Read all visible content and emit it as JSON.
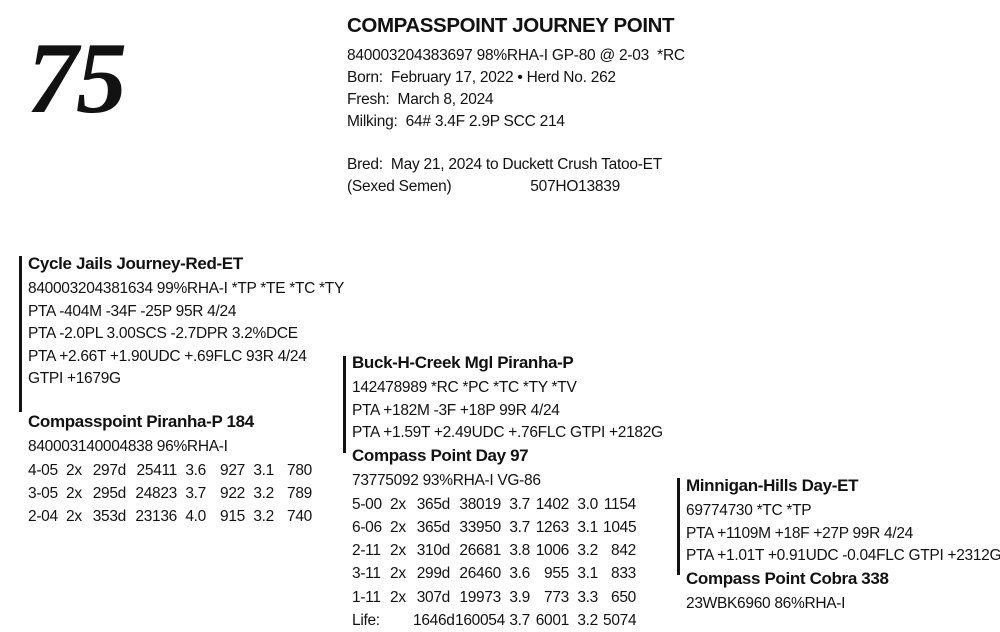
{
  "lot_number": "75",
  "animal": {
    "name": "COMPASSPOINT JOURNEY POINT",
    "reg_line": "840003204383697 98%RHA-I GP-80 @ 2-03  *RC",
    "born": "Born:  February 17, 2022 • Herd No. 262",
    "fresh": "Fresh:  March 8, 2024",
    "milking": "Milking:  64# 3.4F 2.9P SCC 214",
    "bred": "Bred:  May 21, 2024 to Duckett Crush Tatoo-ET",
    "semen": "(Sexed Semen)",
    "service_sire_code": "507HO13839"
  },
  "pedigree": {
    "sire": {
      "name": "Cycle Jails Journey-Red-ET",
      "lines": [
        "840003204381634 99%RHA-I *TP *TE *TC *TY",
        "PTA -404M -34F -25P 95R 4/24",
        "PTA -2.0PL 3.00SCS -2.7DPR 3.2%DCE",
        "PTA +2.66T +1.90UDC +.69FLC 93R 4/24",
        "GTPI +1679G"
      ]
    },
    "dam": {
      "name": "Compasspoint Piranha-P 184",
      "lines": [
        "840003140004838 96%RHA-I"
      ],
      "records": [
        [
          "4-05",
          "2x",
          "297d",
          "25411",
          "3.6",
          "927",
          "3.1",
          "780"
        ],
        [
          "3-05",
          "2x",
          "295d",
          "24823",
          "3.7",
          "922",
          "3.2",
          "789"
        ],
        [
          "2-04",
          "2x",
          "353d",
          "23136",
          "4.0",
          "915",
          "3.2",
          "740"
        ]
      ]
    },
    "maternal_grandsire": {
      "name": "Buck-H-Creek Mgl Piranha-P",
      "lines": [
        "142478989 *RC *PC *TC *TY *TV",
        "PTA +182M -3F +18P 99R 4/24",
        "PTA +1.59T +2.49UDC +.76FLC GTPI +2182G"
      ]
    },
    "maternal_granddam": {
      "name": "Compass Point Day 97",
      "lines": [
        "73775092 93%RHA-I VG-86"
      ],
      "records": [
        [
          "5-00",
          "2x",
          "365d",
          "38019",
          "3.7",
          "1402",
          "3.0",
          "1154"
        ],
        [
          "6-06",
          "2x",
          "365d",
          "33950",
          "3.7",
          "1263",
          "3.1",
          "1045"
        ],
        [
          "2-11",
          "2x",
          "310d",
          "26681",
          "3.8",
          "1006",
          "3.2",
          "842"
        ],
        [
          "3-11",
          "2x",
          "299d",
          "26460",
          "3.6",
          "955",
          "3.1",
          "833"
        ],
        [
          "1-11",
          "2x",
          "307d",
          "19973",
          "3.9",
          "773",
          "3.3",
          "650"
        ],
        [
          "Life:",
          "",
          "1646d",
          "160054",
          "3.7",
          "6001",
          "3.2",
          "5074"
        ]
      ]
    },
    "great_grandsire": {
      "name": "Minnigan-Hills Day-ET",
      "lines": [
        "69774730 *TC *TP",
        "PTA +1109M +18F +27P 99R 4/24",
        "PTA +1.01T +0.91UDC -0.04FLC GTPI +2312G"
      ]
    },
    "great_granddam": {
      "name": "Compass Point Cobra 338",
      "lines": [
        "23WBK6960 86%RHA-I"
      ]
    }
  }
}
